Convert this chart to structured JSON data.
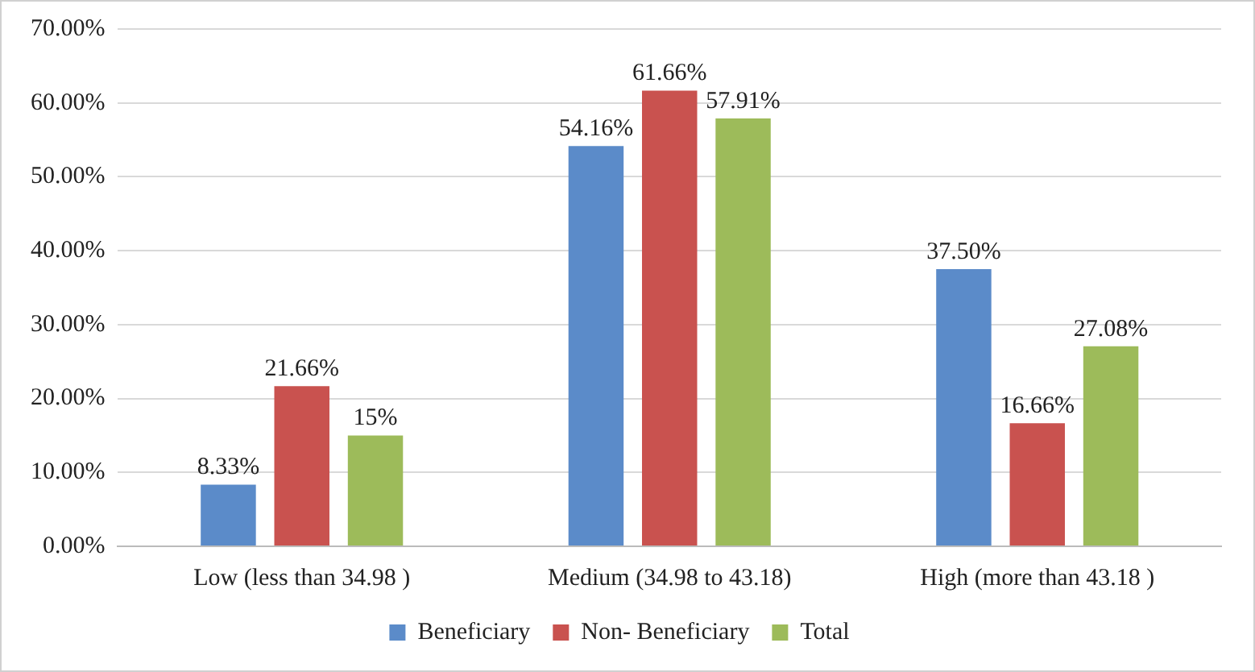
{
  "chart_data": {
    "type": "bar",
    "categories": [
      "Low (less than 34.98 )",
      "Medium (34.98 to 43.18)",
      "High (more than 43.18 )"
    ],
    "series": [
      {
        "name": "Beneficiary",
        "color": "#5b8bc9",
        "values": [
          8.33,
          54.16,
          37.5
        ],
        "value_labels": [
          "8.33%",
          "54.16%",
          "37.50%"
        ]
      },
      {
        "name": "Non- Beneficiary",
        "color": "#c9524f",
        "values": [
          21.66,
          61.66,
          16.66
        ],
        "value_labels": [
          "21.66%",
          "61.66%",
          "16.66%"
        ]
      },
      {
        "name": "Total",
        "color": "#9dbb5a",
        "values": [
          15,
          57.91,
          27.08
        ],
        "value_labels": [
          "15%",
          "57.91%",
          "27.08%"
        ]
      }
    ],
    "ylim": [
      0,
      70
    ],
    "yticks": [
      {
        "value": 0,
        "label": "0.00%"
      },
      {
        "value": 10,
        "label": "10.00%"
      },
      {
        "value": 20,
        "label": "20.00%"
      },
      {
        "value": 30,
        "label": "30.00%"
      },
      {
        "value": 40,
        "label": "40.00%"
      },
      {
        "value": 50,
        "label": "50.00%"
      },
      {
        "value": 60,
        "label": "60.00%"
      },
      {
        "value": 70,
        "label": "70.00%"
      }
    ],
    "grid": "y",
    "legend": "bottom"
  }
}
